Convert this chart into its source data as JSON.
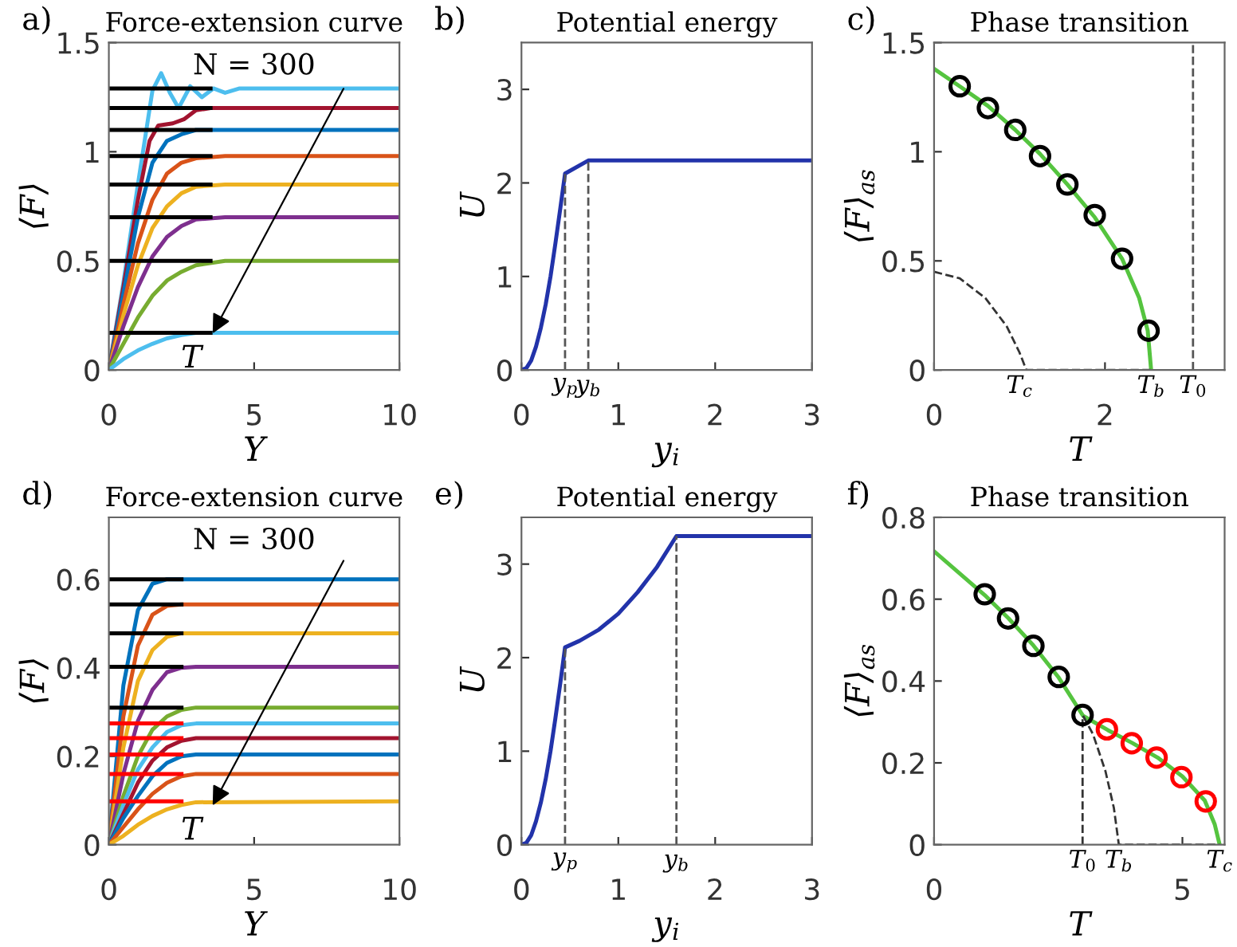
{
  "chart_data": [
    {
      "type": "line",
      "title": "Force-extension curve",
      "xlabel": "Y",
      "ylabel": "⟨F⟩",
      "xlim": [
        0,
        10
      ],
      "ylim": [
        0,
        1.5
      ],
      "xticks": [
        0,
        5,
        10
      ],
      "yticks": [
        0,
        0.5,
        1,
        1.5
      ],
      "annotations": [
        "a)",
        "N = 300",
        {
          "text": "T",
          "x": 3.5,
          "y": 0.15
        }
      ],
      "series": [
        {
          "color": "#4dbeee",
          "x": [
            0,
            0.5,
            1,
            1.5,
            1.8,
            2.1,
            2.4,
            2.8,
            3.2,
            3.6,
            4,
            4.5,
            10
          ],
          "values": [
            0,
            0.4,
            0.85,
            1.28,
            1.36,
            1.27,
            1.2,
            1.3,
            1.25,
            1.29,
            1.27,
            1.29,
            1.29
          ]
        },
        {
          "color": "#a2142f",
          "x": [
            0,
            0.5,
            1,
            1.4,
            1.7,
            2.2,
            2.6,
            3,
            3.5,
            10
          ],
          "values": [
            0,
            0.38,
            0.78,
            1.05,
            1.12,
            1.13,
            1.15,
            1.19,
            1.2,
            1.2
          ]
        },
        {
          "color": "#0072bd",
          "x": [
            0,
            0.5,
            1,
            1.5,
            2,
            2.5,
            3,
            3.6,
            10
          ],
          "values": [
            0,
            0.35,
            0.7,
            0.95,
            1.05,
            1.08,
            1.1,
            1.1,
            1.1
          ]
        },
        {
          "color": "#d95319",
          "x": [
            0,
            0.5,
            1,
            1.5,
            2,
            2.5,
            3,
            4,
            10
          ],
          "values": [
            0,
            0.3,
            0.58,
            0.78,
            0.9,
            0.95,
            0.97,
            0.98,
            0.98
          ]
        },
        {
          "color": "#edb120",
          "x": [
            0,
            0.5,
            1,
            1.5,
            2,
            2.5,
            3,
            4,
            10
          ],
          "values": [
            0,
            0.25,
            0.48,
            0.65,
            0.75,
            0.81,
            0.84,
            0.85,
            0.85
          ]
        },
        {
          "color": "#7e2f8e",
          "x": [
            0,
            0.5,
            1,
            1.5,
            2,
            2.5,
            3,
            4,
            10
          ],
          "values": [
            0,
            0.2,
            0.38,
            0.52,
            0.61,
            0.66,
            0.69,
            0.7,
            0.7
          ]
        },
        {
          "color": "#77ac30",
          "x": [
            0,
            0.5,
            1,
            1.5,
            2,
            2.5,
            3,
            4,
            10
          ],
          "values": [
            0,
            0.12,
            0.24,
            0.34,
            0.41,
            0.45,
            0.48,
            0.5,
            0.5
          ]
        },
        {
          "color": "#4dbeee",
          "x": [
            0,
            0.5,
            1,
            1.5,
            2,
            2.5,
            3,
            10
          ],
          "values": [
            0,
            0.05,
            0.09,
            0.12,
            0.145,
            0.16,
            0.17,
            0.17
          ]
        },
        {
          "color": "#000000",
          "x": [
            0,
            3.5
          ],
          "values": [
            1.29,
            1.29
          ]
        },
        {
          "color": "#000000",
          "x": [
            0,
            3.5
          ],
          "values": [
            1.2,
            1.2
          ]
        },
        {
          "color": "#000000",
          "x": [
            0,
            3.5
          ],
          "values": [
            1.1,
            1.1
          ]
        },
        {
          "color": "#000000",
          "x": [
            0,
            3.5
          ],
          "values": [
            0.98,
            0.98
          ]
        },
        {
          "color": "#000000",
          "x": [
            0,
            3.5
          ],
          "values": [
            0.85,
            0.85
          ]
        },
        {
          "color": "#000000",
          "x": [
            0,
            3.5
          ],
          "values": [
            0.7,
            0.7
          ]
        },
        {
          "color": "#000000",
          "x": [
            0,
            3.5
          ],
          "values": [
            0.5,
            0.5
          ]
        },
        {
          "color": "#000000",
          "x": [
            0,
            3.5
          ],
          "values": [
            0.17,
            0.17
          ]
        }
      ]
    },
    {
      "type": "line",
      "title": "Potential energy",
      "xlabel": "y$_{i}$",
      "ylabel": "U",
      "xlim": [
        0,
        3
      ],
      "ylim": [
        0,
        3.5
      ],
      "xticks": [
        0,
        1,
        2,
        3
      ],
      "yticks": [
        0,
        1,
        2,
        3
      ],
      "annotations": [
        "b)",
        {
          "text": "y$_{p}$",
          "x": 0.45,
          "y": 0
        },
        {
          "text": "y$_{b}$",
          "x": 0.69,
          "y": 0
        }
      ],
      "series": [
        {
          "color": "#2233aa",
          "x": [
            0,
            0.05,
            0.1,
            0.15,
            0.2,
            0.25,
            0.3,
            0.35,
            0.4,
            0.45,
            0.69,
            3
          ],
          "values": [
            0,
            0.02,
            0.1,
            0.25,
            0.45,
            0.7,
            1.0,
            1.35,
            1.72,
            2.1,
            2.24,
            2.24
          ]
        },
        {
          "color": "#555555",
          "line_style": "dashed",
          "x": [
            0.45,
            0.45
          ],
          "values": [
            0,
            2.1
          ]
        },
        {
          "color": "#555555",
          "line_style": "dashed",
          "x": [
            0.69,
            0.69
          ],
          "values": [
            0,
            2.24
          ]
        }
      ]
    },
    {
      "type": "line",
      "title": "Phase transition",
      "xlabel": "T",
      "ylabel": "⟨F⟩$_{as}$",
      "xlim": [
        0,
        3.4
      ],
      "ylim": [
        0,
        1.5
      ],
      "xticks": [
        0,
        2
      ],
      "yticks": [
        0,
        0.5,
        1,
        1.5
      ],
      "annotations": [
        "c)",
        {
          "text": "T$_{c}$",
          "x": 1.0,
          "y": 0
        },
        {
          "text": "T$_{b}$",
          "x": 2.54,
          "y": 0
        },
        {
          "text": "T$_{0}$",
          "x": 3.03,
          "y": 0
        }
      ],
      "ref_lines": [
        {
          "axis": "x",
          "value": 3.03,
          "color": "#555555",
          "line_style": "dashed"
        }
      ],
      "series": [
        {
          "color": "#55c43f",
          "x": [
            0,
            0.3,
            0.63,
            0.95,
            1.24,
            1.56,
            1.88,
            2.2,
            2.4,
            2.5,
            2.54
          ],
          "values": [
            1.38,
            1.3,
            1.21,
            1.1,
            0.99,
            0.85,
            0.7,
            0.51,
            0.33,
            0.18,
            0
          ]
        },
        {
          "color": "#333333",
          "line_style": "dashed",
          "x": [
            0,
            0.3,
            0.6,
            0.85,
            1.0,
            1.08,
            2.54
          ],
          "values": [
            0.45,
            0.42,
            0.33,
            0.2,
            0.08,
            0,
            0
          ]
        },
        {
          "type": "scatter",
          "marker": "circle",
          "color": "#000000",
          "x": [
            0.3,
            0.63,
            0.95,
            1.24,
            1.56,
            1.88,
            2.2,
            2.51
          ],
          "values": [
            1.3,
            1.2,
            1.1,
            0.98,
            0.85,
            0.71,
            0.51,
            0.18
          ]
        }
      ]
    },
    {
      "type": "line",
      "title": "Force-extension curve",
      "xlabel": "Y",
      "ylabel": "⟨F⟩",
      "xlim": [
        0,
        10
      ],
      "ylim": [
        0,
        0.74
      ],
      "xticks": [
        0,
        5,
        10
      ],
      "yticks": [
        0,
        0.2,
        0.4,
        0.6
      ],
      "annotations": [
        "d)",
        "N = 300",
        {
          "text": "T",
          "x": 3.5,
          "y": 0.08
        }
      ],
      "series": [
        {
          "color": "#0072bd",
          "x": [
            0,
            0.5,
            1,
            1.5,
            2,
            2.5,
            3,
            10
          ],
          "values": [
            0,
            0.36,
            0.53,
            0.59,
            0.6,
            0.6,
            0.6,
            0.6
          ]
        },
        {
          "color": "#d95319",
          "x": [
            0,
            0.5,
            1,
            1.5,
            2,
            2.5,
            3,
            10
          ],
          "values": [
            0,
            0.29,
            0.45,
            0.52,
            0.54,
            0.543,
            0.543,
            0.543
          ]
        },
        {
          "color": "#edb120",
          "x": [
            0,
            0.5,
            1,
            1.5,
            2,
            2.5,
            3,
            10
          ],
          "values": [
            0,
            0.22,
            0.37,
            0.44,
            0.47,
            0.478,
            0.478,
            0.478
          ]
        },
        {
          "color": "#7e2f8e",
          "x": [
            0,
            0.5,
            1,
            1.5,
            2,
            2.5,
            3,
            10
          ],
          "values": [
            0,
            0.16,
            0.28,
            0.35,
            0.39,
            0.4,
            0.402,
            0.402
          ]
        },
        {
          "color": "#77ac30",
          "x": [
            0,
            0.5,
            1,
            1.5,
            2,
            2.5,
            3,
            10
          ],
          "values": [
            0,
            0.11,
            0.2,
            0.26,
            0.29,
            0.305,
            0.31,
            0.31
          ]
        },
        {
          "color": "#4dbeee",
          "x": [
            0,
            0.5,
            1,
            1.5,
            2,
            2.5,
            3,
            10
          ],
          "values": [
            0,
            0.09,
            0.17,
            0.22,
            0.255,
            0.27,
            0.274,
            0.274
          ]
        },
        {
          "color": "#a2142f",
          "x": [
            0,
            0.5,
            1,
            1.5,
            2,
            2.5,
            3,
            10
          ],
          "values": [
            0,
            0.07,
            0.14,
            0.19,
            0.22,
            0.235,
            0.241,
            0.241
          ]
        },
        {
          "color": "#0072bd",
          "x": [
            0,
            0.5,
            1,
            1.5,
            2,
            2.5,
            3,
            10
          ],
          "values": [
            0,
            0.06,
            0.11,
            0.155,
            0.185,
            0.2,
            0.204,
            0.204
          ]
        },
        {
          "color": "#d95319",
          "x": [
            0,
            0.5,
            1,
            1.5,
            2,
            2.5,
            3,
            10
          ],
          "values": [
            0,
            0.04,
            0.08,
            0.115,
            0.14,
            0.155,
            0.16,
            0.16
          ]
        },
        {
          "color": "#edb120",
          "x": [
            0,
            0.5,
            1,
            1.5,
            2,
            2.5,
            3,
            10
          ],
          "values": [
            0,
            0.02,
            0.045,
            0.065,
            0.08,
            0.09,
            0.096,
            0.098
          ]
        },
        {
          "color": "#000000",
          "x": [
            0,
            2.5
          ],
          "values": [
            0.6,
            0.6
          ]
        },
        {
          "color": "#000000",
          "x": [
            0,
            2.5
          ],
          "values": [
            0.543,
            0.543
          ]
        },
        {
          "color": "#000000",
          "x": [
            0,
            2.5
          ],
          "values": [
            0.478,
            0.478
          ]
        },
        {
          "color": "#000000",
          "x": [
            0,
            2.5
          ],
          "values": [
            0.402,
            0.402
          ]
        },
        {
          "color": "#000000",
          "x": [
            0,
            2.5
          ],
          "values": [
            0.31,
            0.31
          ]
        },
        {
          "color": "#ff0000",
          "x": [
            0,
            2.5
          ],
          "values": [
            0.274,
            0.274
          ]
        },
        {
          "color": "#ff0000",
          "x": [
            0,
            2.5
          ],
          "values": [
            0.241,
            0.241
          ]
        },
        {
          "color": "#ff0000",
          "x": [
            0,
            2.5
          ],
          "values": [
            0.204,
            0.204
          ]
        },
        {
          "color": "#ff0000",
          "x": [
            0,
            2.5
          ],
          "values": [
            0.16,
            0.16
          ]
        },
        {
          "color": "#ff0000",
          "x": [
            0,
            2.5
          ],
          "values": [
            0.098,
            0.098
          ]
        }
      ]
    },
    {
      "type": "line",
      "title": "Potential energy",
      "xlabel": "y$_{i}$",
      "ylabel": "U",
      "xlim": [
        0,
        3
      ],
      "ylim": [
        0,
        3.5
      ],
      "xticks": [
        0,
        1,
        2,
        3
      ],
      "yticks": [
        0,
        1,
        2,
        3
      ],
      "annotations": [
        "e)",
        {
          "text": "y$_{p}$",
          "x": 0.45,
          "y": 0
        },
        {
          "text": "y$_{b}$",
          "x": 1.6,
          "y": 0
        }
      ],
      "series": [
        {
          "color": "#2233aa",
          "x": [
            0,
            0.05,
            0.1,
            0.15,
            0.2,
            0.25,
            0.3,
            0.35,
            0.4,
            0.45,
            0.6,
            0.8,
            1.0,
            1.2,
            1.4,
            1.6,
            3
          ],
          "values": [
            0,
            0.02,
            0.1,
            0.25,
            0.45,
            0.7,
            1.0,
            1.35,
            1.72,
            2.11,
            2.18,
            2.3,
            2.47,
            2.7,
            2.97,
            3.3,
            3.3
          ]
        },
        {
          "color": "#555555",
          "line_style": "dashed",
          "x": [
            0.45,
            0.45
          ],
          "values": [
            0,
            2.11
          ]
        },
        {
          "color": "#555555",
          "line_style": "dashed",
          "x": [
            1.6,
            1.6
          ],
          "values": [
            0,
            3.3
          ]
        }
      ]
    },
    {
      "type": "line",
      "title": "Phase transition",
      "xlabel": "T",
      "ylabel": "⟨F⟩$_{as}$",
      "xlim": [
        0,
        5.85
      ],
      "ylim": [
        0,
        0.8
      ],
      "xticks": [
        0,
        5
      ],
      "yticks": [
        0,
        0.2,
        0.4,
        0.6,
        0.8
      ],
      "annotations": [
        "f)",
        {
          "text": "T$_{0}$",
          "x": 2.99,
          "y": 0
        },
        {
          "text": "T$_{b}$",
          "x": 3.72,
          "y": 0
        },
        {
          "text": "T$_{c}$",
          "x": 5.75,
          "y": 0
        }
      ],
      "series": [
        {
          "color": "#55c43f",
          "x": [
            0,
            1.02,
            1.5,
            2,
            2.5,
            3,
            3.5,
            4,
            4.5,
            5,
            5.45,
            5.65,
            5.75
          ],
          "values": [
            0.717,
            0.61,
            0.553,
            0.487,
            0.41,
            0.315,
            0.28,
            0.248,
            0.213,
            0.167,
            0.108,
            0.05,
            0
          ]
        },
        {
          "color": "#333333",
          "line_style": "dashed",
          "x": [
            2.99,
            2.99
          ],
          "values": [
            0,
            0.315
          ]
        },
        {
          "color": "#333333",
          "line_style": "dashed",
          "x": [
            3.0,
            3.2,
            3.45,
            3.62,
            3.72,
            5.75
          ],
          "values": [
            0.315,
            0.27,
            0.18,
            0.09,
            0,
            0
          ]
        },
        {
          "type": "scatter",
          "marker": "circle",
          "color": "#000000",
          "x": [
            1.02,
            1.49,
            2.0,
            2.51,
            2.99
          ],
          "values": [
            0.612,
            0.553,
            0.486,
            0.41,
            0.317
          ]
        },
        {
          "type": "scatter",
          "marker": "circle",
          "color": "#ff0000",
          "x": [
            3.48,
            3.98,
            4.48,
            4.98,
            5.47
          ],
          "values": [
            0.282,
            0.248,
            0.213,
            0.165,
            0.106
          ]
        }
      ]
    }
  ]
}
